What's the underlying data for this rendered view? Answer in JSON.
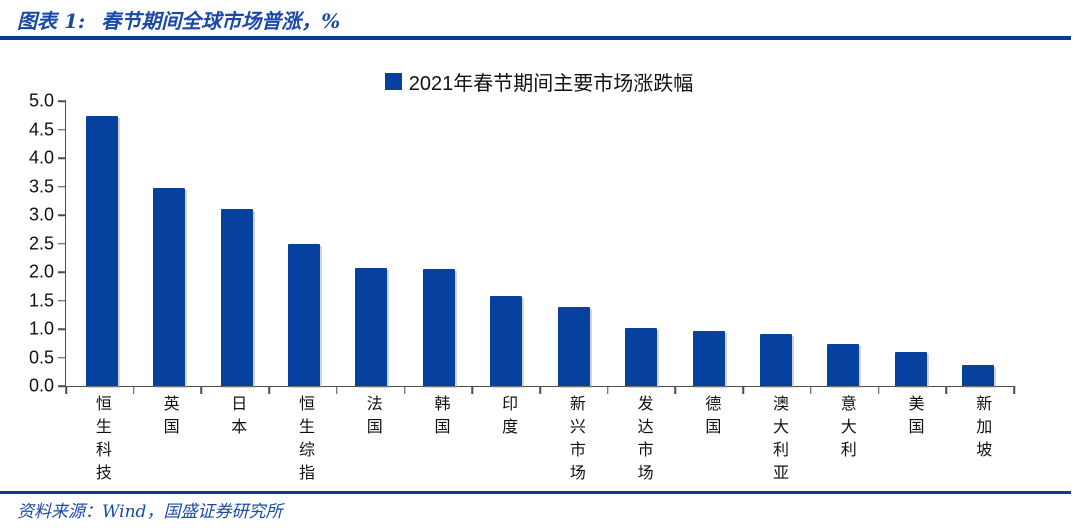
{
  "figure": {
    "label": "图表 1:",
    "title": "春节期间全球市场普涨，%",
    "source": "资料来源：Wind，国盛证券研究所"
  },
  "colors": {
    "bar": "#06419f",
    "accent_text": "#1b4aa6",
    "rule": "#0d3a94",
    "axis": "#4d4d4d",
    "ink": "#111111"
  },
  "chart_data": {
    "type": "bar",
    "title": "图表 1: 春节期间全球市场普涨，%",
    "legend": "2021年春节期间主要市场涨跌幅",
    "legend_position": "top-center",
    "categories": [
      "恒生科技",
      "英国",
      "日本",
      "恒生综指",
      "法国",
      "韩国",
      "印度",
      "新兴市场",
      "发达市场",
      "德国",
      "澳大利亚",
      "意大利",
      "美国",
      "新加坡"
    ],
    "values": [
      4.73,
      3.48,
      3.1,
      2.49,
      2.07,
      2.05,
      1.58,
      1.38,
      1.01,
      0.97,
      0.91,
      0.74,
      0.6,
      0.37
    ],
    "xlabel": "",
    "ylabel": "",
    "unit": "%",
    "ylim": [
      0,
      5.0
    ],
    "ytick_step": 0.5,
    "grid": false
  }
}
